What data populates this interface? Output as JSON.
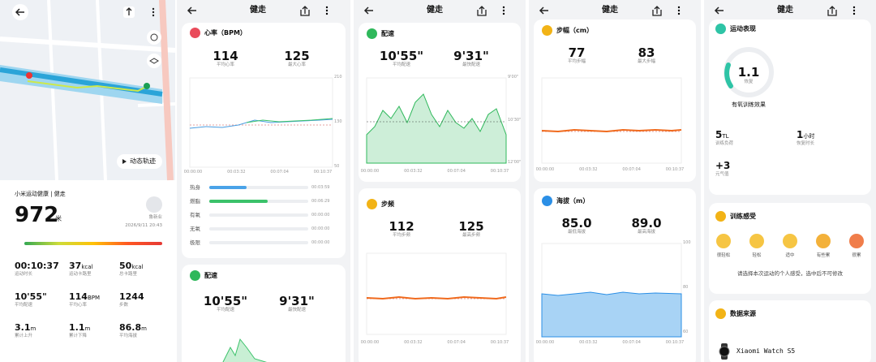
{
  "screen1": {
    "map_button": "动态轨迹",
    "app_label": "小米运动健康 | 健走",
    "distance": "972",
    "distance_unit": "米",
    "user": "鲁新业",
    "datetime": "2026/9/11 20:43",
    "stats": [
      {
        "value": "00:10:37",
        "label": "运动时长"
      },
      {
        "value": "37",
        "unit": "kcal",
        "label": "运动卡路里"
      },
      {
        "value": "50",
        "unit": "kcal",
        "label": "总卡路里"
      },
      {
        "value": "10'55\"",
        "label": "平均配速"
      },
      {
        "value": "114",
        "unit": "BPM",
        "label": "平均心率"
      },
      {
        "value": "1244",
        "label": "步数"
      },
      {
        "value": "3.1",
        "unit": "m",
        "label": "累计上升"
      },
      {
        "value": "1.1",
        "unit": "m",
        "label": "累计下降"
      },
      {
        "value": "86.8",
        "unit": "m",
        "label": "平均海拔"
      }
    ]
  },
  "screen2": {
    "title": "健走",
    "heart_rate": {
      "title": "心率（BPM）",
      "metrics": [
        {
          "value": "114",
          "label": "平均心率"
        },
        {
          "value": "125",
          "label": "最大心率"
        }
      ],
      "yticks": [
        "210",
        "130",
        "50"
      ],
      "xticks": [
        "00:00:00",
        "00:03:32",
        "00:07:04",
        "00:10:37"
      ]
    },
    "zones": [
      {
        "name": "热身",
        "time": "00:03:59"
      },
      {
        "name": "燃脂",
        "time": "00:06:29"
      },
      {
        "name": "有氧",
        "time": "00:00:00"
      },
      {
        "name": "无氧",
        "time": "00:00:00"
      },
      {
        "name": "极限",
        "time": "00:00:00"
      }
    ],
    "pace": {
      "title": "配速",
      "metrics": [
        {
          "value": "10'55\"",
          "label": "平均配速"
        },
        {
          "value": "9'31\"",
          "label": "最快配速"
        }
      ]
    }
  },
  "screen3": {
    "title": "健走",
    "pace": {
      "title": "配速",
      "metrics": [
        {
          "value": "10'55\"",
          "label": "平均配速"
        },
        {
          "value": "9'31\"",
          "label": "最快配速"
        }
      ],
      "yticks": [
        "9'00\"",
        "10'30\"",
        "12'00\""
      ],
      "xticks": [
        "00:00:00",
        "00:03:32",
        "00:07:04",
        "00:10:37"
      ]
    },
    "cadence": {
      "title": "步频",
      "metrics": [
        {
          "value": "112",
          "label": "平均步频"
        },
        {
          "value": "125",
          "label": "最高步频"
        }
      ],
      "xticks": [
        "00:00:00",
        "00:03:32",
        "00:07:04",
        "00:10:37"
      ]
    }
  },
  "screen4": {
    "title": "健走",
    "stride": {
      "title": "步幅（cm）",
      "metrics": [
        {
          "value": "77",
          "label": "平均步幅"
        },
        {
          "value": "83",
          "label": "最大步幅"
        }
      ],
      "xticks": [
        "00:00:00",
        "00:03:32",
        "00:07:04",
        "00:10:37"
      ]
    },
    "altitude": {
      "title": "海拔（m）",
      "metrics": [
        {
          "value": "85.0",
          "label": "最低海拔"
        },
        {
          "value": "89.0",
          "label": "最高海拔"
        }
      ],
      "yticks": [
        "100",
        "80",
        "60"
      ],
      "xticks": [
        "00:00:00",
        "00:03:32",
        "00:07:04",
        "00:10:37"
      ]
    }
  },
  "screen5": {
    "title": "健走",
    "performance": {
      "title": "运动表现",
      "score": "1.1",
      "score_label": "恢复",
      "effect": "有氧训练效果",
      "metrics": [
        {
          "value": "5",
          "unit": "TL",
          "label": "训练负荷"
        },
        {
          "value": "1",
          "unit": "小时",
          "label": "恢复时长"
        },
        {
          "value": "+3",
          "label": "元气值"
        }
      ]
    },
    "feeling": {
      "title": "训练感受",
      "options": [
        "很轻松",
        "轻松",
        "适中",
        "有些累",
        "很累"
      ],
      "hint": "请选择本次运动的个人感受，选中后不可修改"
    },
    "source": {
      "title": "数据来源",
      "device": "Xiaomi Watch S5"
    }
  }
}
